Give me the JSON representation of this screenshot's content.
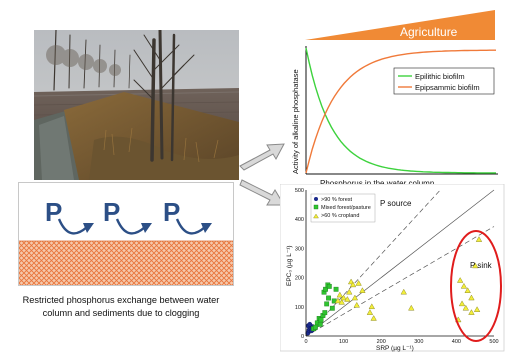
{
  "top_banner": {
    "label": "Agriculture",
    "color": "#f08a35"
  },
  "enzyme_chart": {
    "ylabel": "Activity of alkaline phosphatase",
    "xlabel": "Phosphorus in the water column",
    "legend": [
      {
        "name": "Epilithic biofilm",
        "color": "#3dd23d"
      },
      {
        "name": "Epipsammic biofilm",
        "color": "#f07a3a"
      }
    ]
  },
  "clogging_panel": {
    "symbols": [
      "P",
      "P",
      "P"
    ],
    "caption_line1": "Restricted phosphorus exchange between water",
    "caption_line2": "column and sediments due to clogging",
    "sediment_color": "#e8743b",
    "arrow_color": "#2c4f86"
  },
  "chart_data": {
    "type": "scatter",
    "xlabel": "SRP (µg L⁻¹)",
    "ylabel": "EPC₀ (µg L⁻¹)",
    "xlim": [
      0,
      500
    ],
    "ylim": [
      0,
      500
    ],
    "xticks": [
      "0",
      "100",
      "200",
      "300",
      "400",
      "500"
    ],
    "yticks": [
      "0",
      "100",
      "200",
      "300",
      "400",
      "500"
    ],
    "legend_position": "top-left",
    "annotations": [
      "P source",
      "P sink"
    ],
    "series": [
      {
        "name": ">90 % forest",
        "marker": "circle",
        "color": "#1b2a8c",
        "points": [
          [
            5,
            10
          ],
          [
            8,
            20
          ],
          [
            10,
            25
          ],
          [
            12,
            30
          ],
          [
            15,
            18
          ],
          [
            6,
            35
          ],
          [
            18,
            32
          ],
          [
            10,
            40
          ]
        ]
      },
      {
        "name": "Mixed forest/pasture",
        "marker": "square",
        "color": "#2fc42f",
        "points": [
          [
            20,
            25
          ],
          [
            30,
            45
          ],
          [
            35,
            60
          ],
          [
            40,
            55
          ],
          [
            45,
            70
          ],
          [
            50,
            80
          ],
          [
            55,
            110
          ],
          [
            60,
            130
          ],
          [
            48,
            150
          ],
          [
            52,
            160
          ],
          [
            58,
            175
          ],
          [
            62,
            170
          ],
          [
            70,
            95
          ],
          [
            75,
            120
          ],
          [
            80,
            160
          ],
          [
            25,
            30
          ],
          [
            38,
            40
          ]
        ]
      },
      {
        "name": ">60 % cropland",
        "marker": "triangle",
        "color": "#f2ee3a",
        "points": [
          [
            85,
            120
          ],
          [
            90,
            140
          ],
          [
            95,
            115
          ],
          [
            100,
            130
          ],
          [
            110,
            125
          ],
          [
            115,
            150
          ],
          [
            120,
            185
          ],
          [
            125,
            175
          ],
          [
            130,
            130
          ],
          [
            135,
            105
          ],
          [
            140,
            180
          ],
          [
            150,
            155
          ],
          [
            170,
            80
          ],
          [
            175,
            100
          ],
          [
            180,
            60
          ],
          [
            260,
            150
          ],
          [
            280,
            95
          ],
          [
            410,
            190
          ],
          [
            420,
            170
          ],
          [
            430,
            155
          ],
          [
            415,
            110
          ],
          [
            425,
            95
          ],
          [
            440,
            80
          ],
          [
            405,
            55
          ],
          [
            450,
            240
          ],
          [
            455,
            90
          ],
          [
            460,
            330
          ],
          [
            440,
            130
          ]
        ]
      }
    ],
    "lines": [
      {
        "style": "solid",
        "slope": 1.0
      },
      {
        "style": "dashed",
        "slope": 1.4
      },
      {
        "style": "dashed",
        "slope": 0.75
      }
    ]
  }
}
